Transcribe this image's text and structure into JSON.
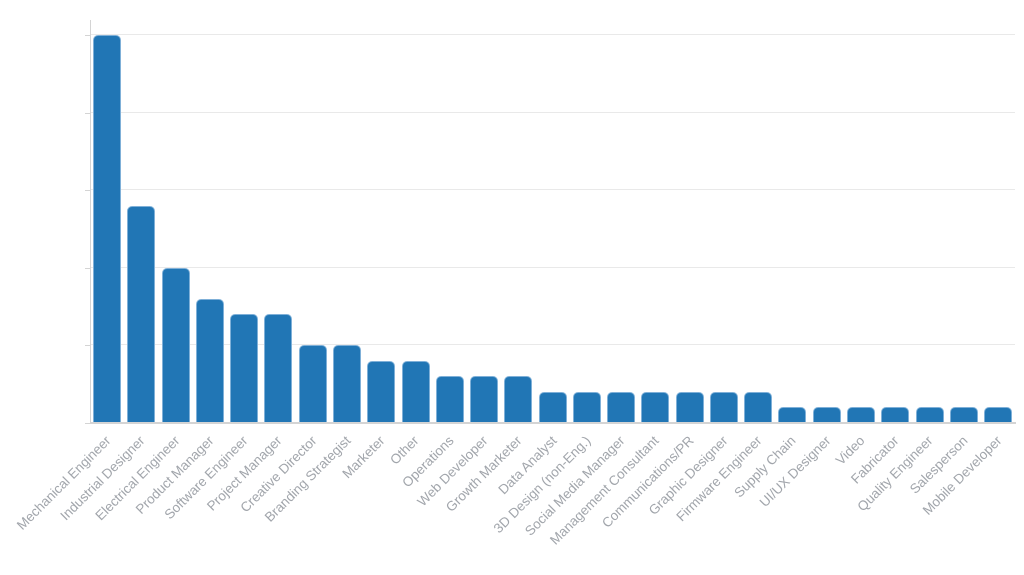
{
  "chart_data": {
    "type": "bar",
    "title": "",
    "xlabel": "",
    "ylabel": "",
    "categories": [
      "Mechanical Engineer",
      "Industrial Designer",
      "Electrical Engineer",
      "Product Manager",
      "Software Engineer",
      "Project Manager",
      "Creative Director",
      "Branding Strategist",
      "Marketer",
      "Other",
      "Operations",
      "Web Developer",
      "Growth Marketer",
      "Data Analyst",
      "3D Design (non-Eng.)",
      "Social Media Manager",
      "Management Consultant",
      "Communications/PR",
      "Graphic Designer",
      "Firmware Engineer",
      "Supply Chain",
      "UI/UX Designer",
      "Video",
      "Fabricator",
      "Quality Engineer",
      "Salesperson",
      "Mobile Developer"
    ],
    "values": [
      25,
      14,
      10,
      8,
      7,
      7,
      5,
      5,
      4,
      4,
      3,
      3,
      3,
      2,
      2,
      2,
      2,
      2,
      2,
      2,
      1,
      1,
      1,
      1,
      1,
      1,
      1
    ],
    "ylim": [
      0,
      25
    ],
    "grid_step": 5,
    "grid": true,
    "legend": false,
    "y_tick_labels_visible": false,
    "x_tick_label_rotation_deg": -45,
    "colors": {
      "bar_fill": "#2176b5",
      "bar_stroke": "#7fb0d8",
      "gridline": "#e9e9e9",
      "axis": "#d4d4d4",
      "tick_label": "#a1a5ab",
      "background": "#ffffff"
    }
  }
}
